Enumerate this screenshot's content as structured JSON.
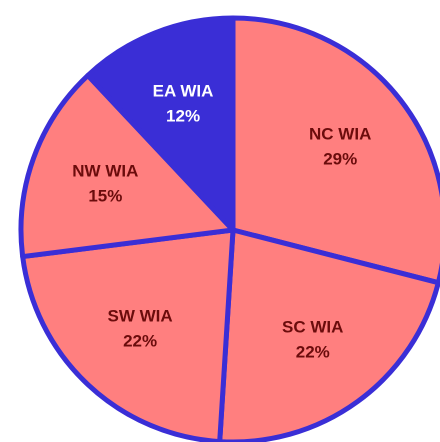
{
  "chart_data": {
    "type": "pie",
    "categories": [
      "NC WIA",
      "SC WIA",
      "SW WIA",
      "NW WIA",
      "EA WIA"
    ],
    "values": [
      29,
      22,
      22,
      15,
      12
    ],
    "value_labels": [
      "29%",
      "22%",
      "22%",
      "15%",
      "12%"
    ],
    "colors": [
      "#ff7f7f",
      "#ff7f7f",
      "#ff7f7f",
      "#ff7f7f",
      "#3a2ed6"
    ],
    "label_colors": [
      "#6b0c0c",
      "#6b0c0c",
      "#6b0c0c",
      "#6b0c0c",
      "#ffffff"
    ],
    "edge_color": "#3a2ed6"
  }
}
